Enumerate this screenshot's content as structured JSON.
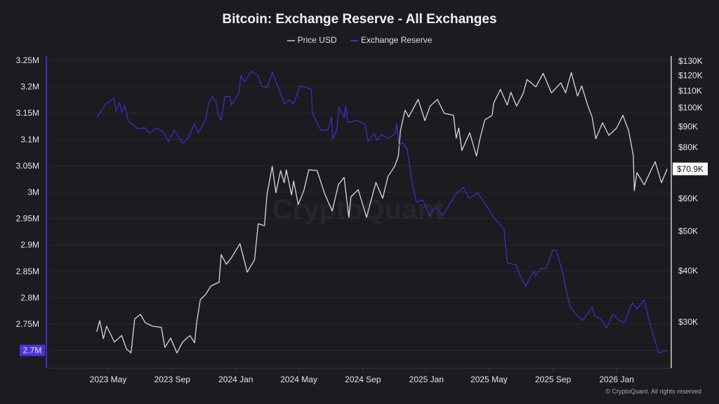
{
  "title": "Bitcoin: Exchange Reserve - All Exchanges",
  "footer": "© CryptoQuant. All rights reserved",
  "watermark": "CryptoQuant",
  "chart_data": {
    "type": "line",
    "title": "Bitcoin: Exchange Reserve - All Exchanges",
    "legend_position": "top-center",
    "grid": true,
    "colors": {
      "background": "#1b1b20",
      "price": "#d8d8dc",
      "reserve": "#3d2fc4",
      "current_reserve_badge": "#4a33e0"
    },
    "x_ticks": [
      "2023 May",
      "2023 Sep",
      "2024 Jan",
      "2024 May",
      "2024 Sep",
      "2025 Jan",
      "2025 May",
      "2025 Sep",
      "2026 Jan"
    ],
    "x_tick_dates": [
      "2023-05-01",
      "2023-09-01",
      "2024-01-01",
      "2024-05-01",
      "2024-09-01",
      "2025-01-01",
      "2025-05-01",
      "2025-09-01",
      "2026-01-01"
    ],
    "left_axis": {
      "ticks": [
        "3.25M",
        "3.2M",
        "3.15M",
        "3.1M",
        "3.05M",
        "3M",
        "2.95M",
        "2.9M",
        "2.85M",
        "2.8M",
        "2.75M",
        "2.7M"
      ],
      "values": [
        3.25,
        3.2,
        3.15,
        3.1,
        3.05,
        3.0,
        2.95,
        2.9,
        2.85,
        2.8,
        2.75,
        2.7
      ],
      "current_label": "2.7M",
      "unit": "M BTC"
    },
    "right_axis": {
      "scale": "log",
      "ticks": [
        "$130K",
        "$120K",
        "$110K",
        "$100K",
        "$90K",
        "$80K",
        "$60K",
        "$50K",
        "$40K",
        "$30K"
      ],
      "values": [
        130,
        120,
        110,
        100,
        90,
        80,
        60,
        50,
        40,
        30
      ],
      "current_label": "$70.9K",
      "unit": "K USD"
    },
    "series": [
      {
        "name": "Price USD",
        "axis": "right",
        "points": [
          [
            "2023-04-09",
            28.4
          ],
          [
            "2023-04-15",
            30.2
          ],
          [
            "2023-04-22",
            27.3
          ],
          [
            "2023-04-28",
            29.3
          ],
          [
            "2023-05-13",
            26.8
          ],
          [
            "2023-05-27",
            27.8
          ],
          [
            "2023-06-05",
            25.8
          ],
          [
            "2023-06-14",
            25.2
          ],
          [
            "2023-06-21",
            30.5
          ],
          [
            "2023-07-02",
            31.3
          ],
          [
            "2023-07-11",
            29.9
          ],
          [
            "2023-07-25",
            29.3
          ],
          [
            "2023-08-11",
            29.1
          ],
          [
            "2023-08-18",
            26.0
          ],
          [
            "2023-08-29",
            27.4
          ],
          [
            "2023-09-10",
            25.2
          ],
          [
            "2023-09-21",
            26.8
          ],
          [
            "2023-10-05",
            27.8
          ],
          [
            "2023-10-14",
            26.7
          ],
          [
            "2023-10-18",
            29.9
          ],
          [
            "2023-10-25",
            34.0
          ],
          [
            "2023-11-04",
            35.0
          ],
          [
            "2023-11-14",
            36.7
          ],
          [
            "2023-11-30",
            37.5
          ],
          [
            "2023-12-04",
            43.8
          ],
          [
            "2023-12-14",
            41.5
          ],
          [
            "2023-12-24",
            43.1
          ],
          [
            "2024-01-09",
            46.6
          ],
          [
            "2024-01-23",
            39.7
          ],
          [
            "2024-02-06",
            42.5
          ],
          [
            "2024-02-13",
            52.1
          ],
          [
            "2024-02-25",
            51.5
          ],
          [
            "2024-03-01",
            61.5
          ],
          [
            "2024-03-11",
            71.9
          ],
          [
            "2024-03-18",
            62.0
          ],
          [
            "2024-03-27",
            70.2
          ],
          [
            "2024-04-03",
            65.6
          ],
          [
            "2024-04-07",
            70.5
          ],
          [
            "2024-04-17",
            61.2
          ],
          [
            "2024-04-21",
            66.2
          ],
          [
            "2024-04-30",
            58.0
          ],
          [
            "2024-05-11",
            63.0
          ],
          [
            "2024-05-20",
            70.5
          ],
          [
            "2024-06-05",
            70.3
          ],
          [
            "2024-06-20",
            61.5
          ],
          [
            "2024-07-04",
            56.0
          ],
          [
            "2024-07-16",
            64.9
          ],
          [
            "2024-07-27",
            67.6
          ],
          [
            "2024-08-05",
            54.0
          ],
          [
            "2024-08-09",
            60.6
          ],
          [
            "2024-08-23",
            63.1
          ],
          [
            "2024-09-08",
            54.0
          ],
          [
            "2024-09-26",
            65.7
          ],
          [
            "2024-10-09",
            60.1
          ],
          [
            "2024-10-19",
            67.9
          ],
          [
            "2024-11-01",
            71.9
          ],
          [
            "2024-11-08",
            76.2
          ],
          [
            "2024-11-12",
            87.9
          ],
          [
            "2024-11-21",
            98.6
          ],
          [
            "2024-11-28",
            94.9
          ],
          [
            "2024-12-16",
            104.8
          ],
          [
            "2024-12-29",
            93.0
          ],
          [
            "2025-01-08",
            100.9
          ],
          [
            "2025-01-22",
            104.8
          ],
          [
            "2025-02-04",
            96.9
          ],
          [
            "2025-02-22",
            95.8
          ],
          [
            "2025-02-27",
            84.3
          ],
          [
            "2025-03-04",
            89.2
          ],
          [
            "2025-03-10",
            78.6
          ],
          [
            "2025-03-25",
            86.9
          ],
          [
            "2025-04-07",
            76.2
          ],
          [
            "2025-04-14",
            84.3
          ],
          [
            "2025-04-23",
            93.4
          ],
          [
            "2025-05-07",
            95.8
          ],
          [
            "2025-05-10",
            102.6
          ],
          [
            "2025-05-23",
            110.8
          ],
          [
            "2025-06-05",
            101.5
          ],
          [
            "2025-06-12",
            109.1
          ],
          [
            "2025-06-23",
            100.9
          ],
          [
            "2025-07-06",
            108.7
          ],
          [
            "2025-07-13",
            117.2
          ],
          [
            "2025-07-30",
            112.4
          ],
          [
            "2025-08-13",
            121.3
          ],
          [
            "2025-08-29",
            108.7
          ],
          [
            "2025-09-16",
            115.0
          ],
          [
            "2025-09-25",
            108.7
          ],
          [
            "2025-10-06",
            121.8
          ],
          [
            "2025-10-18",
            106.8
          ],
          [
            "2025-10-26",
            113.0
          ],
          [
            "2025-11-07",
            100.9
          ],
          [
            "2025-11-15",
            94.9
          ],
          [
            "2025-11-22",
            84.0
          ],
          [
            "2025-12-05",
            91.9
          ],
          [
            "2025-12-17",
            85.6
          ],
          [
            "2026-01-01",
            89.2
          ],
          [
            "2026-01-13",
            95.8
          ],
          [
            "2026-01-24",
            87.9
          ],
          [
            "2026-02-02",
            76.5
          ],
          [
            "2026-02-04",
            62.8
          ],
          [
            "2026-02-09",
            69.4
          ],
          [
            "2026-02-23",
            64.8
          ],
          [
            "2026-03-08",
            70.4
          ],
          [
            "2026-03-16",
            73.8
          ],
          [
            "2026-03-28",
            65.6
          ],
          [
            "2026-04-08",
            70.9
          ]
        ]
      },
      {
        "name": "Exchange Reserve",
        "axis": "left",
        "points": [
          [
            "2023-04-09",
            3.14
          ],
          [
            "2023-04-26",
            3.167
          ],
          [
            "2023-05-12",
            3.178
          ],
          [
            "2023-05-16",
            3.154
          ],
          [
            "2023-05-23",
            3.17
          ],
          [
            "2023-05-27",
            3.152
          ],
          [
            "2023-06-02",
            3.165
          ],
          [
            "2023-06-09",
            3.134
          ],
          [
            "2023-06-28",
            3.12
          ],
          [
            "2023-07-11",
            3.122
          ],
          [
            "2023-07-20",
            3.112
          ],
          [
            "2023-08-02",
            3.122
          ],
          [
            "2023-08-15",
            3.114
          ],
          [
            "2023-08-25",
            3.096
          ],
          [
            "2023-09-05",
            3.118
          ],
          [
            "2023-09-21",
            3.093
          ],
          [
            "2023-09-30",
            3.101
          ],
          [
            "2023-10-14",
            3.13
          ],
          [
            "2023-10-21",
            3.112
          ],
          [
            "2023-11-04",
            3.138
          ],
          [
            "2023-11-10",
            3.169
          ],
          [
            "2023-11-17",
            3.181
          ],
          [
            "2023-11-23",
            3.174
          ],
          [
            "2023-11-30",
            3.142
          ],
          [
            "2023-12-04",
            3.137
          ],
          [
            "2023-12-11",
            3.181
          ],
          [
            "2023-12-20",
            3.182
          ],
          [
            "2023-12-24",
            3.165
          ],
          [
            "2024-01-07",
            3.188
          ],
          [
            "2024-01-11",
            3.221
          ],
          [
            "2024-01-18",
            3.209
          ],
          [
            "2024-01-31",
            3.229
          ],
          [
            "2024-02-12",
            3.222
          ],
          [
            "2024-02-20",
            3.201
          ],
          [
            "2024-03-01",
            3.198
          ],
          [
            "2024-03-11",
            3.227
          ],
          [
            "2024-03-24",
            3.195
          ],
          [
            "2024-04-03",
            3.167
          ],
          [
            "2024-04-13",
            3.175
          ],
          [
            "2024-04-21",
            3.167
          ],
          [
            "2024-05-03",
            3.202
          ],
          [
            "2024-05-25",
            3.195
          ],
          [
            "2024-05-27",
            3.149
          ],
          [
            "2024-06-12",
            3.118
          ],
          [
            "2024-06-26",
            3.118
          ],
          [
            "2024-07-03",
            3.142
          ],
          [
            "2024-07-05",
            3.101
          ],
          [
            "2024-07-13",
            3.118
          ],
          [
            "2024-07-17",
            3.161
          ],
          [
            "2024-07-27",
            3.141
          ],
          [
            "2024-07-30",
            3.164
          ],
          [
            "2024-08-03",
            3.132
          ],
          [
            "2024-08-19",
            3.136
          ],
          [
            "2024-09-05",
            3.129
          ],
          [
            "2024-09-11",
            3.096
          ],
          [
            "2024-09-23",
            3.112
          ],
          [
            "2024-09-28",
            3.098
          ],
          [
            "2024-10-06",
            3.109
          ],
          [
            "2024-10-20",
            3.102
          ],
          [
            "2024-11-02",
            3.112
          ],
          [
            "2024-11-05",
            3.129
          ],
          [
            "2024-11-09",
            3.088
          ],
          [
            "2024-11-16",
            3.094
          ],
          [
            "2024-11-25",
            3.082
          ],
          [
            "2024-12-05",
            3.015
          ],
          [
            "2024-12-13",
            2.981
          ],
          [
            "2024-12-25",
            2.985
          ],
          [
            "2025-01-07",
            2.955
          ],
          [
            "2025-01-18",
            2.972
          ],
          [
            "2025-02-01",
            2.956
          ],
          [
            "2025-02-17",
            2.981
          ],
          [
            "2025-02-25",
            2.995
          ],
          [
            "2025-03-13",
            3.009
          ],
          [
            "2025-03-24",
            2.988
          ],
          [
            "2025-04-09",
            2.999
          ],
          [
            "2025-04-23",
            2.979
          ],
          [
            "2025-05-10",
            2.952
          ],
          [
            "2025-05-30",
            2.93
          ],
          [
            "2025-06-05",
            2.866
          ],
          [
            "2025-06-22",
            2.862
          ],
          [
            "2025-06-29",
            2.843
          ],
          [
            "2025-07-10",
            2.822
          ],
          [
            "2025-07-26",
            2.85
          ],
          [
            "2025-07-30",
            2.842
          ],
          [
            "2025-08-08",
            2.855
          ],
          [
            "2025-08-19",
            2.855
          ],
          [
            "2025-08-31",
            2.89
          ],
          [
            "2025-09-07",
            2.89
          ],
          [
            "2025-09-20",
            2.846
          ],
          [
            "2025-09-25",
            2.819
          ],
          [
            "2025-10-04",
            2.783
          ],
          [
            "2025-10-17",
            2.766
          ],
          [
            "2025-10-28",
            2.757
          ],
          [
            "2025-11-15",
            2.782
          ],
          [
            "2025-11-20",
            2.766
          ],
          [
            "2025-12-04",
            2.757
          ],
          [
            "2025-12-12",
            2.742
          ],
          [
            "2025-12-25",
            2.769
          ],
          [
            "2026-01-06",
            2.757
          ],
          [
            "2026-01-17",
            2.753
          ],
          [
            "2026-01-21",
            2.766
          ],
          [
            "2026-01-31",
            2.79
          ],
          [
            "2026-02-09",
            2.779
          ],
          [
            "2026-02-23",
            2.796
          ],
          [
            "2026-03-03",
            2.762
          ],
          [
            "2026-03-12",
            2.73
          ],
          [
            "2026-03-23",
            2.695
          ],
          [
            "2026-04-08",
            2.7
          ]
        ]
      }
    ]
  }
}
